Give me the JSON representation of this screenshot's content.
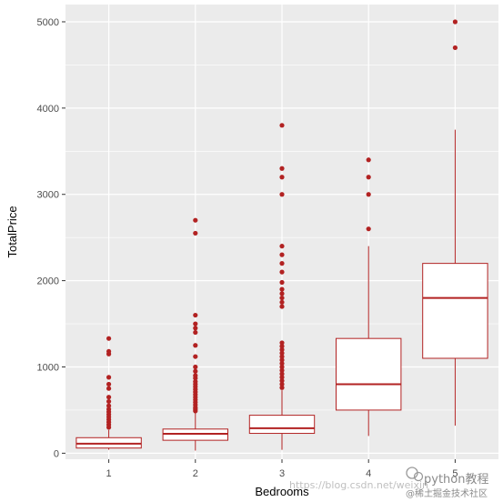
{
  "chart_data": {
    "type": "boxplot",
    "xlabel": "Bedrooms",
    "ylabel": "TotalPrice",
    "categories": [
      "1",
      "2",
      "3",
      "4",
      "5"
    ],
    "ylim": [
      -70,
      5200
    ],
    "y_ticks": [
      0,
      1000,
      2000,
      3000,
      4000,
      5000
    ],
    "grid": true,
    "background": "#ebebeb",
    "gridline_color": "#ffffff",
    "box_color": "#b22222",
    "boxes": [
      {
        "category": "1",
        "min": 40,
        "q1": 60,
        "median": 110,
        "q3": 180,
        "max": 270,
        "outliers": [
          300,
          330,
          360,
          390,
          420,
          450,
          480,
          510,
          550,
          600,
          650,
          750,
          800,
          880,
          1150,
          1180,
          1330
        ]
      },
      {
        "category": "2",
        "min": 30,
        "q1": 150,
        "median": 225,
        "q3": 280,
        "max": 470,
        "outliers": [
          490,
          510,
          530,
          560,
          590,
          620,
          650,
          680,
          710,
          740,
          770,
          800,
          830,
          870,
          900,
          950,
          1000,
          1120,
          1250,
          1400,
          1450,
          1500,
          1600,
          2550,
          2700
        ]
      },
      {
        "category": "3",
        "min": 40,
        "q1": 230,
        "median": 290,
        "q3": 440,
        "max": 730,
        "outliers": [
          760,
          800,
          840,
          880,
          920,
          960,
          1000,
          1040,
          1080,
          1120,
          1160,
          1200,
          1240,
          1280,
          1700,
          1750,
          1800,
          1850,
          1900,
          1980,
          2100,
          2200,
          2300,
          2400,
          3000,
          3200,
          3300,
          3800
        ]
      },
      {
        "category": "4",
        "min": 200,
        "q1": 500,
        "median": 800,
        "q3": 1330,
        "max": 2400,
        "outliers": [
          2600,
          3000,
          3200,
          3400
        ]
      },
      {
        "category": "5",
        "min": 320,
        "q1": 1100,
        "median": 1800,
        "q3": 2200,
        "max": 3750,
        "outliers": [
          4700,
          5000
        ]
      }
    ]
  },
  "watermark": {
    "url_text": "https://blog.csdn.net/weixin_",
    "brand_text": "python教程",
    "community_text": "@稀土掘金技术社区"
  }
}
